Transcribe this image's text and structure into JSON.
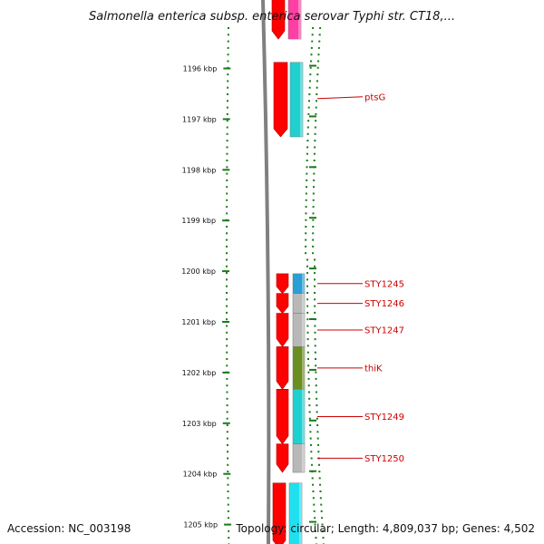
{
  "title": "Salmonella enterica subsp. enterica serovar Typhi str. CT18,...",
  "footer": {
    "accession": "Accession: NC_003198",
    "topology": "Topology: circular; Length: 4,809,037 bp; Genes: 4,502"
  },
  "scale": {
    "unit": "kbp",
    "ticks": [
      1196,
      1197,
      1198,
      1199,
      1200,
      1201,
      1202,
      1203,
      1204,
      1205
    ],
    "labels": [
      "1196 kbp",
      "1197 kbp",
      "1198 kbp",
      "1199 kbp",
      "1200 kbp",
      "1201 kbp",
      "1202 kbp",
      "1203 kbp",
      "1204 kbp",
      "1205 kbp"
    ]
  },
  "colors": {
    "scale": "#1a7a1a",
    "backbone": "#808080",
    "gene": "#ff0000",
    "label": "#cc0000",
    "magenta": "#ff3fa4",
    "cyan": "#20d0d0",
    "gray": "#b8b8b8",
    "olive": "#6b8e23",
    "blue": "#2a9fd6"
  },
  "genes": [
    {
      "name": "ptsG",
      "start": 1195.88,
      "end": 1197.35,
      "category_color": "#20d0d0"
    },
    {
      "name": "STY1245",
      "start": 1200.05,
      "end": 1200.44,
      "category_color": "#2a9fd6"
    },
    {
      "name": "STY1246",
      "start": 1200.44,
      "end": 1200.83,
      "category_color": "#b8b8b8"
    },
    {
      "name": "STY1247",
      "start": 1200.83,
      "end": 1201.49,
      "category_color": "#b8b8b8"
    },
    {
      "name": "thiK",
      "start": 1201.49,
      "end": 1202.33,
      "category_color": "#6b8e23"
    },
    {
      "name": "STY1249",
      "start": 1202.33,
      "end": 1203.41,
      "category_color": "#20d0d0"
    },
    {
      "name": "STY1250",
      "start": 1203.41,
      "end": 1203.97,
      "category_color": "#b8b8b8"
    }
  ],
  "edge_genes": [
    {
      "start": 1194.6,
      "end": 1195.42,
      "category_color": "#ff3fa4"
    },
    {
      "start": 1204.18,
      "end": 1205.5,
      "category_color": "#20e0f0"
    }
  ]
}
